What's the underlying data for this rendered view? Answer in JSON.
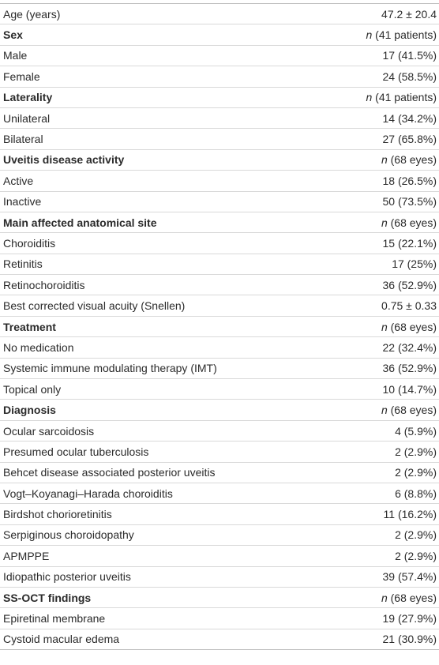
{
  "table": {
    "rows": [
      {
        "label": "Age (years)",
        "value": "47.2 ± 20.4"
      },
      {
        "label": "Sex",
        "bold": true,
        "value": {
          "italic": "n",
          "text": "(41 patients)"
        }
      },
      {
        "label": "Male",
        "value": "17 (41.5%)"
      },
      {
        "label": "Female",
        "value": "24 (58.5%)"
      },
      {
        "label": "Laterality",
        "bold": true,
        "value": {
          "italic": "n",
          "text": "(41 patients)"
        }
      },
      {
        "label": "Unilateral",
        "value": "14 (34.2%)"
      },
      {
        "label": "Bilateral",
        "value": "27 (65.8%)"
      },
      {
        "label": "Uveitis disease activity",
        "bold": true,
        "value": {
          "italic": "n",
          "text": "(68 eyes)"
        }
      },
      {
        "label": "Active",
        "value": "18 (26.5%)"
      },
      {
        "label": "Inactive",
        "value": "50 (73.5%)"
      },
      {
        "label": "Main affected anatomical site",
        "bold": true,
        "value": {
          "italic": "n",
          "text": "(68 eyes)"
        }
      },
      {
        "label": "Choroiditis",
        "value": "15 (22.1%)"
      },
      {
        "label": "Retinitis",
        "value": "17 (25%)"
      },
      {
        "label": "Retinochoroiditis",
        "value": "36 (52.9%)"
      },
      {
        "label": "Best corrected visual acuity (Snellen)",
        "value": "0.75 ± 0.33"
      },
      {
        "label": "Treatment",
        "bold": true,
        "value": {
          "italic": "n",
          "text": "(68 eyes)"
        }
      },
      {
        "label": "No medication",
        "value": "22 (32.4%)"
      },
      {
        "label": "Systemic immune modulating therapy (IMT)",
        "value": "36 (52.9%)"
      },
      {
        "label": "Topical only",
        "value": "10 (14.7%)"
      },
      {
        "label": "Diagnosis",
        "bold": true,
        "value": {
          "italic": "n",
          "text": "(68 eyes)"
        }
      },
      {
        "label": "Ocular sarcoidosis",
        "value": "4 (5.9%)"
      },
      {
        "label": "Presumed ocular tuberculosis",
        "value": "2 (2.9%)"
      },
      {
        "label": "Behcet disease associated posterior uveitis",
        "value": "2 (2.9%)"
      },
      {
        "label": "Vogt–Koyanagi–Harada choroiditis",
        "value": "6 (8.8%)"
      },
      {
        "label": "Birdshot chorioretinitis",
        "value": "11 (16.2%)"
      },
      {
        "label": "Serpiginous choroidopathy",
        "value": "2 (2.9%)"
      },
      {
        "label": "APMPPE",
        "value": "2 (2.9%)"
      },
      {
        "label": "Idiopathic posterior uveitis",
        "value": "39 (57.4%)"
      },
      {
        "label": "SS-OCT findings",
        "bold": true,
        "value": {
          "italic": "n",
          "text": "(68 eyes)"
        }
      },
      {
        "label": "Epiretinal membrane",
        "value": "19 (27.9%)"
      },
      {
        "label": "Cystoid macular edema",
        "value": "21 (30.9%)"
      }
    ]
  }
}
